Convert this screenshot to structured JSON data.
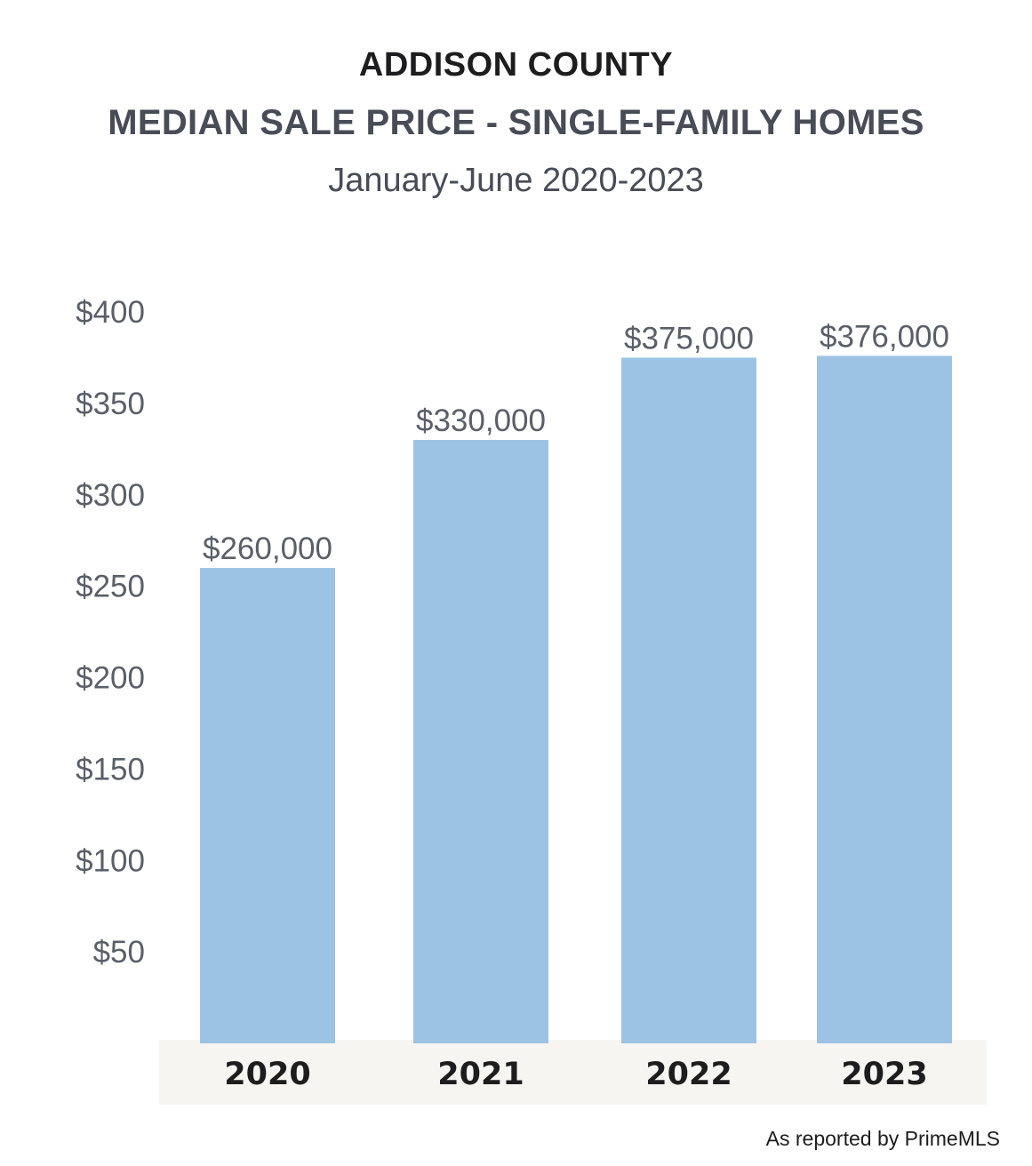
{
  "chart_data": {
    "type": "bar",
    "title": "ADDISON COUNTY",
    "subtitle": "MEDIAN SALE PRICE - SINGLE-FAMILY HOMES",
    "date_range": "January-June 2020-2023",
    "categories": [
      "2020",
      "2021",
      "2022",
      "2023"
    ],
    "values": [
      260,
      330,
      375,
      376
    ],
    "value_labels": [
      "$260,000",
      "$330,000",
      "$375,000",
      "$376,000"
    ],
    "y_ticks": [
      50,
      100,
      150,
      200,
      250,
      300,
      350,
      400
    ],
    "y_tick_labels": [
      "$50",
      "$100",
      "$150",
      "$200",
      "$250",
      "$300",
      "$350",
      "$400"
    ],
    "ylim": [
      0,
      400
    ],
    "xlabel": "",
    "ylabel": "",
    "grid": false,
    "legend": "none",
    "bar_color": "#9dc3e4",
    "category_band_color": "#f6f5f1"
  },
  "source": "As reported by PrimeMLS"
}
